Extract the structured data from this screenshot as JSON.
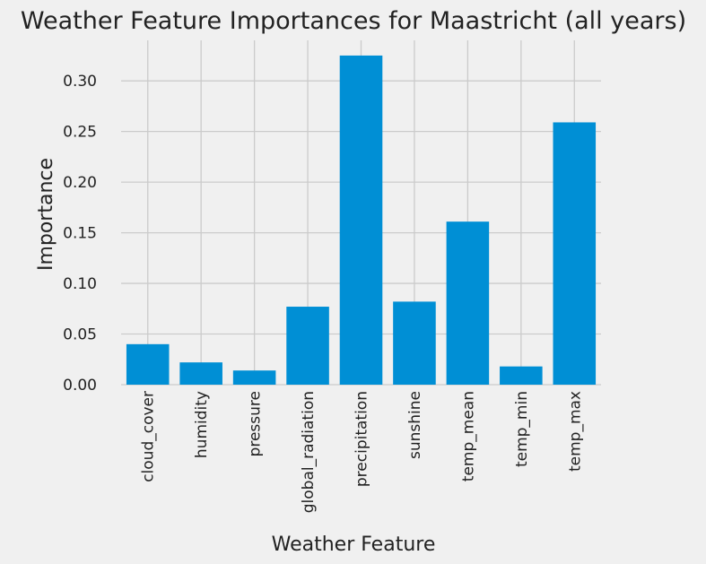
{
  "chart_data": {
    "type": "bar",
    "title": "Weather Feature Importances for Maastricht (all years)",
    "xlabel": "Weather Feature",
    "ylabel": "Importance",
    "categories": [
      "cloud_cover",
      "humidity",
      "pressure",
      "global_radiation",
      "precipitation",
      "sunshine",
      "temp_mean",
      "temp_min",
      "temp_max"
    ],
    "values": [
      0.04,
      0.022,
      0.014,
      0.077,
      0.325,
      0.082,
      0.161,
      0.018,
      0.259
    ],
    "ylim": [
      0,
      0.34
    ],
    "yticks": [
      0.0,
      0.05,
      0.1,
      0.15,
      0.2,
      0.25,
      0.3
    ],
    "ytick_labels": [
      "0.00",
      "0.05",
      "0.10",
      "0.15",
      "0.20",
      "0.25",
      "0.30"
    ],
    "grid": true,
    "bar_color": "#008fd5",
    "background": "#f0f0f0",
    "grid_color": "#cbcbcb"
  }
}
